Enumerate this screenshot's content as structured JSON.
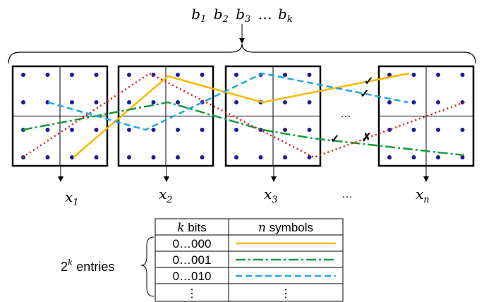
{
  "header": {
    "bits_label": [
      "b",
      "1",
      "b",
      "2",
      "b",
      "3",
      "…",
      "b",
      "k"
    ]
  },
  "grids": [
    {
      "id": "grid-1",
      "label_var": "x",
      "label_sub": "1"
    },
    {
      "id": "grid-2",
      "label_var": "x",
      "label_sub": "2"
    },
    {
      "id": "grid-3",
      "label_var": "x",
      "label_sub": "3"
    },
    {
      "id": "grid-n",
      "label_var": "x",
      "label_sub": "n"
    }
  ],
  "ellipsis_mid": "…",
  "ellipsis_bottom": "…",
  "marks": {
    "check": "✓",
    "cross": "✗"
  },
  "colors": {
    "orange": "#f5b800",
    "green": "#1a9a3a",
    "blue": "#20a8e0",
    "red": "#e01818",
    "dot": "#1a1a99"
  },
  "table": {
    "entries_prefix": "2",
    "entries_sup": "k",
    "entries_suffix": " entries",
    "col1_var": "k",
    "col1_text": " bits",
    "col2_var": "n",
    "col2_text": " symbols",
    "rows": [
      {
        "code": "0…000",
        "line": "orange"
      },
      {
        "code": "0…001",
        "line": "green"
      },
      {
        "code": "0…010",
        "line": "blue"
      },
      {
        "code": "⋮",
        "line": "dots"
      }
    ]
  }
}
